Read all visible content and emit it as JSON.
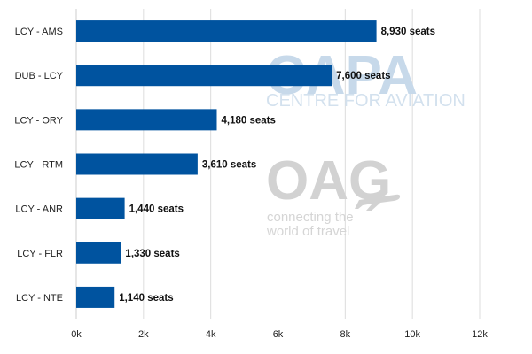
{
  "watermarks": {
    "capa_mark": "CAPA",
    "capa_sub": "CENTRE FOR AVIATION",
    "oag_mark": "OAG",
    "oag_tagline_1": "connecting the",
    "oag_tagline_2": "world of travel"
  },
  "chart_data": {
    "type": "bar",
    "orientation": "horizontal",
    "categories": [
      "LCY - AMS",
      "DUB - LCY",
      "LCY - ORY",
      "LCY - RTM",
      "LCY - ANR",
      "LCY - FLR",
      "LCY - NTE"
    ],
    "values": [
      8930,
      7600,
      4180,
      3610,
      1440,
      1330,
      1140
    ],
    "data_labels": [
      "8,930 seats",
      "7,600 seats",
      "4,180 seats",
      "3,610 seats",
      "1,440 seats",
      "1,330 seats",
      "1,140 seats"
    ],
    "x_ticks": [
      0,
      2000,
      4000,
      6000,
      8000,
      10000,
      12000
    ],
    "x_tick_labels": [
      "0k",
      "2k",
      "4k",
      "6k",
      "8k",
      "10k",
      "12k"
    ],
    "xlim": [
      0,
      12000
    ],
    "grid": true,
    "bar_color": "#00539f",
    "title": "",
    "xlabel": "",
    "ylabel": ""
  }
}
